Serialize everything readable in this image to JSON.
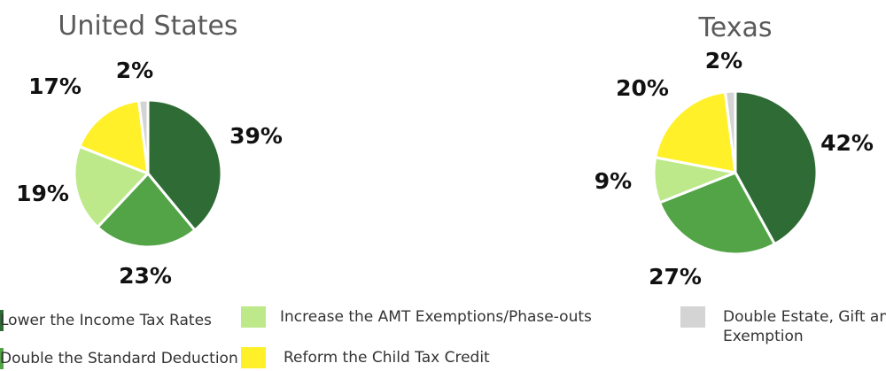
{
  "chart_data": [
    {
      "type": "pie",
      "title": "United States",
      "categories": [
        "Lower the Income Tax Rates",
        "Double the Standard Deduction",
        "Increase the AMT Exemptions/Phase-outs",
        "Reform the Child Tax Credit",
        "Double Estate, Gift and GST Exemption"
      ],
      "values": [
        39,
        23,
        19,
        17,
        2
      ],
      "labels": [
        "39%",
        "23%",
        "19%",
        "17%",
        "2%"
      ],
      "colors": [
        "#2f6b35",
        "#52a447",
        "#bde98a",
        "#fff02a",
        "#d4d4d4"
      ]
    },
    {
      "type": "pie",
      "title": "Texas",
      "categories": [
        "Lower the Income Tax Rates",
        "Double the Standard Deduction",
        "Increase the AMT Exemptions/Phase-outs",
        "Reform the Child Tax Credit",
        "Double Estate, Gift and GST Exemption"
      ],
      "values": [
        42,
        27,
        9,
        20,
        2
      ],
      "labels": [
        "42%",
        "27%",
        "9%",
        "20%",
        "2%"
      ],
      "colors": [
        "#2f6b35",
        "#52a447",
        "#bde98a",
        "#fff02a",
        "#d4d4d4"
      ]
    }
  ],
  "legend": [
    {
      "lines": [
        "Lower the Income Tax Rates"
      ],
      "color": "#2f6b35"
    },
    {
      "lines": [
        "Double the Standard Deduction"
      ],
      "color": "#52a447"
    },
    {
      "lines": [
        "Increase the AMT Exemptions/Phase-outs"
      ],
      "color": "#bde98a"
    },
    {
      "lines": [
        "Reform the Child Tax Credit"
      ],
      "color": "#fff02a"
    },
    {
      "lines": [
        "Double Estate, Gift and GST",
        "Exemption"
      ],
      "color": "#d4d4d4"
    }
  ]
}
